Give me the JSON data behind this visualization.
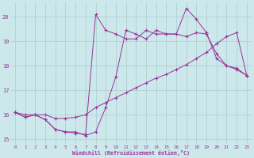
{
  "background_color": "#cce8eb",
  "grid_color": "#aacccc",
  "line_color": "#993399",
  "marker": "+",
  "xlabel": "Windchill (Refroidissement éolien,°C)",
  "xlim": [
    -0.5,
    23.5
  ],
  "ylim": [
    14.8,
    20.6
  ],
  "yticks": [
    15,
    16,
    17,
    18,
    19,
    20
  ],
  "xticks": [
    0,
    1,
    2,
    3,
    4,
    5,
    6,
    7,
    8,
    9,
    10,
    11,
    12,
    13,
    14,
    15,
    16,
    17,
    18,
    19,
    20,
    21,
    22,
    23
  ],
  "line1_x": [
    0,
    1,
    2,
    3,
    4,
    5,
    6,
    7,
    8,
    9,
    10,
    11,
    12,
    13,
    14,
    15,
    16,
    17,
    18,
    19,
    20,
    21,
    22,
    23
  ],
  "line1_y": [
    16.1,
    15.9,
    16.0,
    15.8,
    15.4,
    15.3,
    15.3,
    15.15,
    15.3,
    16.3,
    17.55,
    19.45,
    19.3,
    19.1,
    19.45,
    19.3,
    19.3,
    19.2,
    19.35,
    19.3,
    18.5,
    18.0,
    17.9,
    17.6
  ],
  "line2_x": [
    0,
    1,
    2,
    3,
    4,
    5,
    6,
    7,
    8,
    9,
    10,
    11,
    12,
    13,
    14,
    15,
    16,
    17,
    18,
    19,
    20,
    21,
    22,
    23
  ],
  "line2_y": [
    16.1,
    16.0,
    16.0,
    16.0,
    15.85,
    15.85,
    15.9,
    16.0,
    16.3,
    16.5,
    16.7,
    16.9,
    17.1,
    17.3,
    17.5,
    17.65,
    17.85,
    18.05,
    18.3,
    18.55,
    18.9,
    19.2,
    19.35,
    17.6
  ],
  "line3_x": [
    0,
    1,
    2,
    3,
    4,
    5,
    6,
    7,
    8,
    9,
    10,
    11,
    12,
    13,
    14,
    15,
    16,
    17,
    18,
    19,
    20,
    21,
    22,
    23
  ],
  "line3_y": [
    16.1,
    15.9,
    16.0,
    15.8,
    15.4,
    15.3,
    15.25,
    15.2,
    20.1,
    19.45,
    19.3,
    19.1,
    19.1,
    19.45,
    19.3,
    19.3,
    19.3,
    20.35,
    19.9,
    19.35,
    18.3,
    18.0,
    17.85,
    17.6
  ]
}
